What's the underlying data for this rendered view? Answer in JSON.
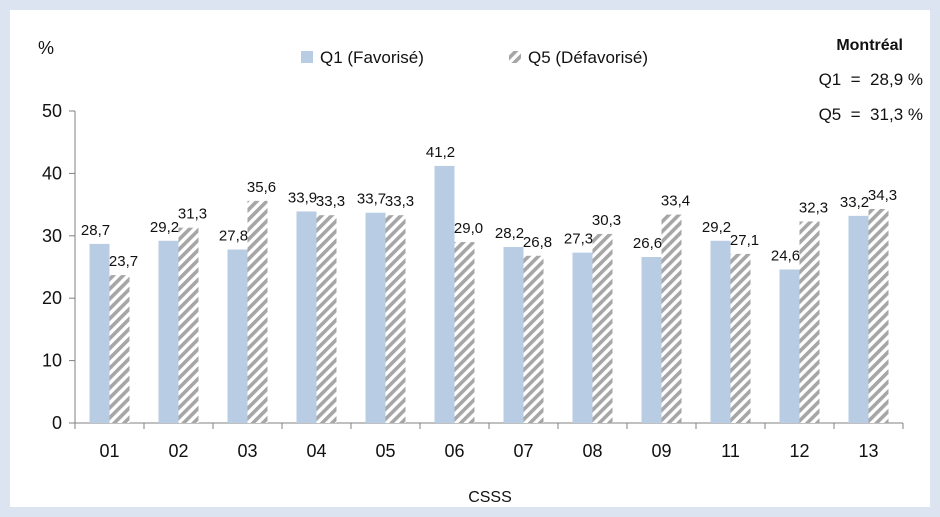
{
  "chart_data": {
    "type": "bar",
    "ylabel": "%",
    "xlabel": "CSSS",
    "ylim": [
      0,
      50
    ],
    "yticks": [
      0,
      10,
      20,
      30,
      40,
      50
    ],
    "grid": false,
    "legend_position": "top",
    "categories": [
      "01",
      "02",
      "03",
      "04",
      "05",
      "06",
      "07",
      "08",
      "09",
      "11",
      "12",
      "13"
    ],
    "series": [
      {
        "name": "Q1 (Favorisé)",
        "color": "#b8cce4",
        "pattern": "solid",
        "values": [
          28.7,
          29.2,
          27.8,
          33.9,
          33.7,
          41.2,
          28.2,
          27.3,
          26.6,
          29.2,
          24.6,
          33.2
        ],
        "labels": [
          "28,7",
          "29,2",
          "27,8",
          "33,9",
          "33,7",
          "41,2",
          "28,2",
          "27,3",
          "26,6",
          "29,2",
          "24,6",
          "33,2"
        ]
      },
      {
        "name": "Q5 (Défavorisé)",
        "color": "#a6a6a6",
        "pattern": "diagonal-hatch",
        "values": [
          23.7,
          31.3,
          35.6,
          33.3,
          33.3,
          29.0,
          26.8,
          30.3,
          33.4,
          27.1,
          32.3,
          34.3
        ],
        "labels": [
          "23,7",
          "31,3",
          "35,6",
          "33,3",
          "33,3",
          "29,0",
          "26,8",
          "30,3",
          "33,4",
          "27,1",
          "32,3",
          "34,3"
        ]
      }
    ],
    "annotation": {
      "title": "Montréal",
      "lines": [
        "Q1  =  28,9 %",
        "Q5  =  31,3 %"
      ]
    }
  }
}
